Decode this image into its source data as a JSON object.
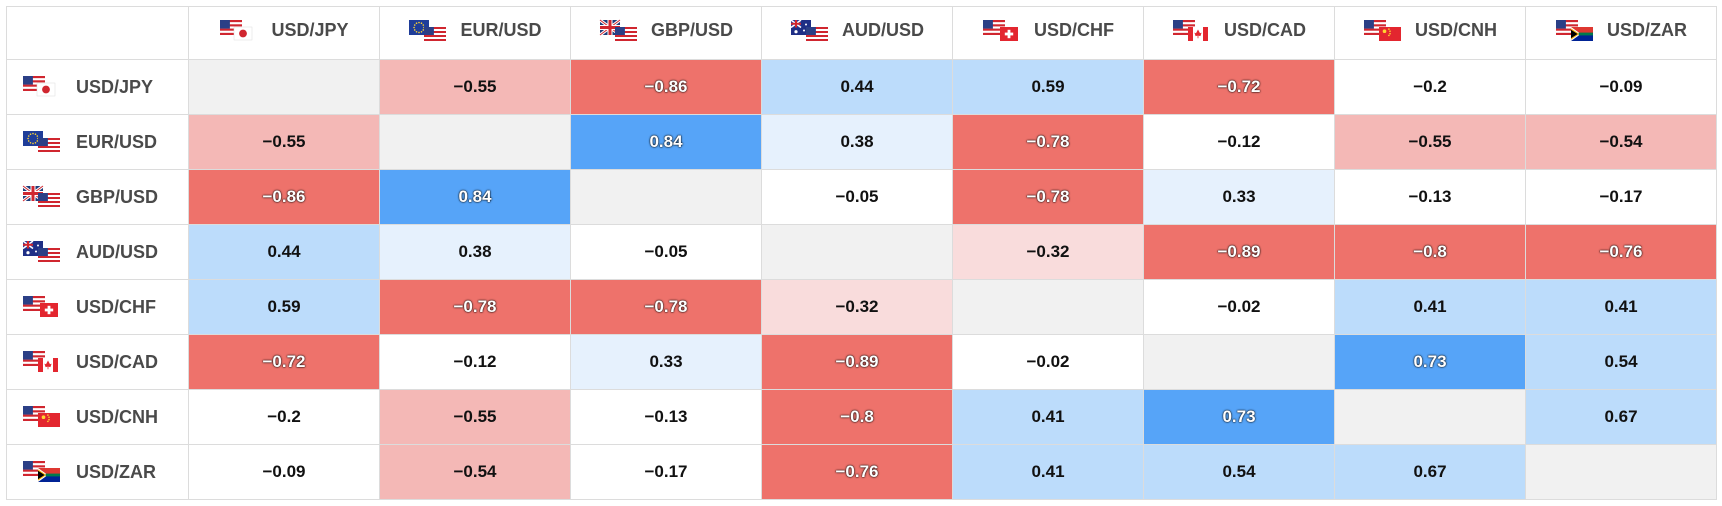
{
  "pairs": [
    "USD/JPY",
    "EUR/USD",
    "GBP/USD",
    "AUD/USD",
    "USD/CHF",
    "USD/CAD",
    "USD/CNH",
    "USD/ZAR"
  ],
  "flag_icons": [
    "us-jp-flag-icon",
    "eu-us-flag-icon",
    "gb-us-flag-icon",
    "au-us-flag-icon",
    "us-ch-flag-icon",
    "us-ca-flag-icon",
    "us-cn-flag-icon",
    "us-za-flag-icon"
  ],
  "matrix": [
    [
      "",
      "−0.55",
      "−0.86",
      "0.44",
      "0.59",
      "−0.72",
      "−0.2",
      "−0.09"
    ],
    [
      "−0.55",
      "",
      "0.84",
      "0.38",
      "−0.78",
      "−0.12",
      "−0.55",
      "−0.54"
    ],
    [
      "−0.86",
      "0.84",
      "",
      "−0.05",
      "−0.78",
      "0.33",
      "−0.13",
      "−0.17"
    ],
    [
      "0.44",
      "0.38",
      "−0.05",
      "",
      "−0.32",
      "−0.89",
      "−0.8",
      "−0.76"
    ],
    [
      "0.59",
      "−0.78",
      "−0.78",
      "−0.32",
      "",
      "−0.02",
      "0.41",
      "0.41"
    ],
    [
      "−0.72",
      "−0.12",
      "0.33",
      "−0.89",
      "−0.02",
      "",
      "0.73",
      "0.54"
    ],
    [
      "−0.2",
      "−0.55",
      "−0.13",
      "−0.8",
      "0.41",
      "0.73",
      "",
      "0.67"
    ],
    [
      "−0.09",
      "−0.54",
      "−0.17",
      "−0.76",
      "0.41",
      "0.54",
      "0.67",
      ""
    ]
  ],
  "colors": {
    "neg_strong": "#ee726b",
    "neg_mid": "#f4b8b6",
    "neg_light": "#f9dcdc",
    "neutral": "#ffffff",
    "pos_light": "#e6f1fd",
    "pos_mid": "#bcdcfb",
    "pos_strong": "#56a4f8",
    "diagonal": "#f1f1f1"
  }
}
